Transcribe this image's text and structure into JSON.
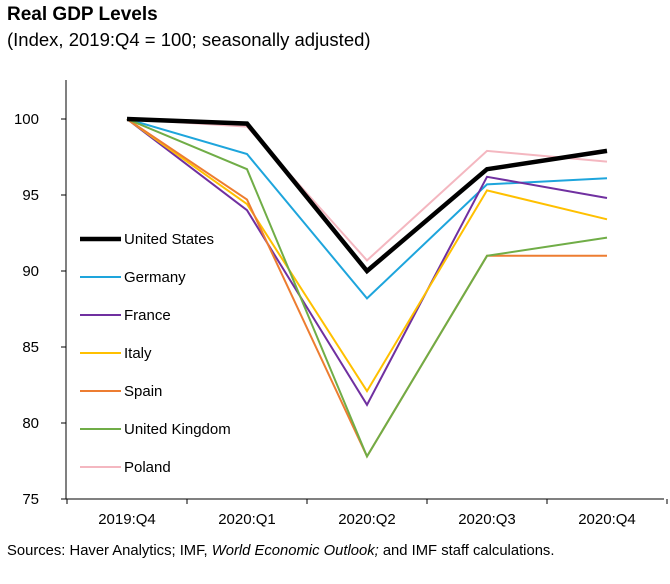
{
  "chart_data": {
    "type": "line",
    "title": "Real GDP Levels",
    "subtitle": "(Index, 2019:Q4 = 100; seasonally adjusted)",
    "categories": [
      "2019:Q4",
      "2020:Q1",
      "2020:Q2",
      "2020:Q3",
      "2020:Q4"
    ],
    "ylim": [
      75,
      102.5
    ],
    "yticks": [
      75,
      80,
      85,
      90,
      95,
      100
    ],
    "grid": false,
    "legend_position": "left-middle",
    "series": [
      {
        "name": "Poland",
        "color": "#f4b7c0",
        "width": 2,
        "values": [
          100,
          99.5,
          90.7,
          97.9,
          97.2
        ]
      },
      {
        "name": "Germany",
        "color": "#1ea5dc",
        "width": 2,
        "values": [
          100,
          97.7,
          88.2,
          95.7,
          96.1
        ]
      },
      {
        "name": "France",
        "color": "#7030a0",
        "width": 2,
        "values": [
          100,
          94.0,
          81.2,
          96.2,
          94.8
        ]
      },
      {
        "name": "Italy",
        "color": "#ffc000",
        "width": 2,
        "values": [
          100,
          94.4,
          82.1,
          95.3,
          93.4
        ]
      },
      {
        "name": "Spain",
        "color": "#ed7d31",
        "width": 2,
        "values": [
          100,
          94.7,
          77.8,
          91.0,
          91.0
        ]
      },
      {
        "name": "United Kingdom",
        "color": "#70ad47",
        "width": 2,
        "values": [
          100,
          96.7,
          77.8,
          91.0,
          92.2
        ]
      },
      {
        "name": "United States",
        "color": "#000000",
        "width": 4.5,
        "values": [
          100,
          99.7,
          90.0,
          96.7,
          97.9
        ]
      }
    ],
    "legend_order": [
      "United States",
      "Germany",
      "France",
      "Italy",
      "Spain",
      "United Kingdom",
      "Poland"
    ]
  },
  "source": {
    "prefix": "Sources: Haver Analytics; IMF, ",
    "italic": "World Economic Outlook;",
    "suffix": " and IMF staff calculations."
  }
}
